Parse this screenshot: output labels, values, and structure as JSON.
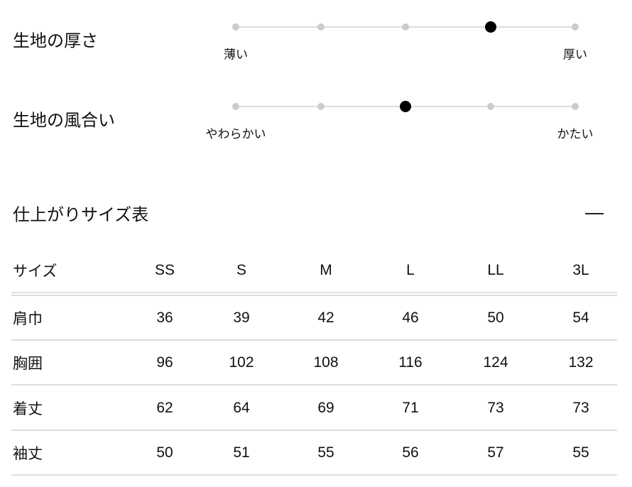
{
  "sliders": [
    {
      "title": "生地の厚さ",
      "min_label": "薄い",
      "max_label": "厚い",
      "steps": 5,
      "value": 4
    },
    {
      "title": "生地の風合い",
      "min_label": "やわらかい",
      "max_label": "かたい",
      "steps": 5,
      "value": 3
    }
  ],
  "size_table": {
    "title": "仕上がりサイズ表",
    "collapse_icon": "minus-icon",
    "headers": [
      "サイズ",
      "SS",
      "S",
      "M",
      "L",
      "LL",
      "3L"
    ],
    "rows": [
      [
        "肩巾",
        "36",
        "39",
        "42",
        "46",
        "50",
        "54"
      ],
      [
        "胸囲",
        "96",
        "102",
        "108",
        "116",
        "124",
        "132"
      ],
      [
        "着丈",
        "62",
        "64",
        "69",
        "71",
        "73",
        "73"
      ],
      [
        "袖丈",
        "50",
        "51",
        "55",
        "56",
        "57",
        "55"
      ]
    ]
  }
}
